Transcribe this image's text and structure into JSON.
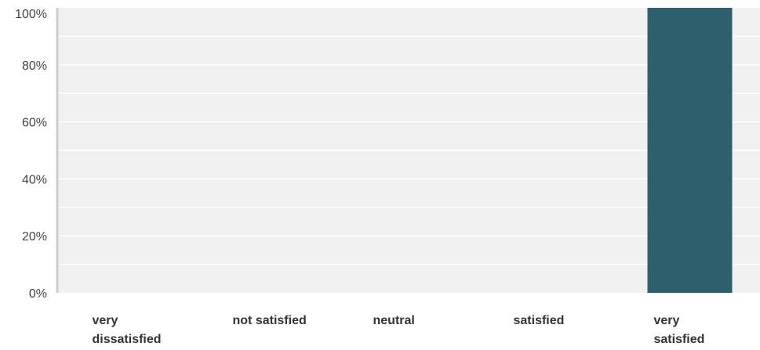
{
  "chart_data": {
    "type": "bar",
    "categories": [
      [
        "very",
        "dissatisfied"
      ],
      [
        "not satisfied"
      ],
      [
        "neutral"
      ],
      [
        "satisfied"
      ],
      [
        "very",
        "satisfied"
      ]
    ],
    "values": [
      0,
      0,
      0,
      0,
      100
    ],
    "y_ticks": [
      "0%",
      "20%",
      "40%",
      "60%",
      "80%",
      "100%"
    ],
    "ylim": [
      0,
      100
    ],
    "grid": true,
    "legend": "none",
    "title": "",
    "xlabel": "",
    "ylabel": ""
  },
  "colors": {
    "bar": "#2e5f6c",
    "plot_background": "#f0f0f0",
    "gridline": "#ffffff",
    "axis_line": "#cccccc"
  }
}
